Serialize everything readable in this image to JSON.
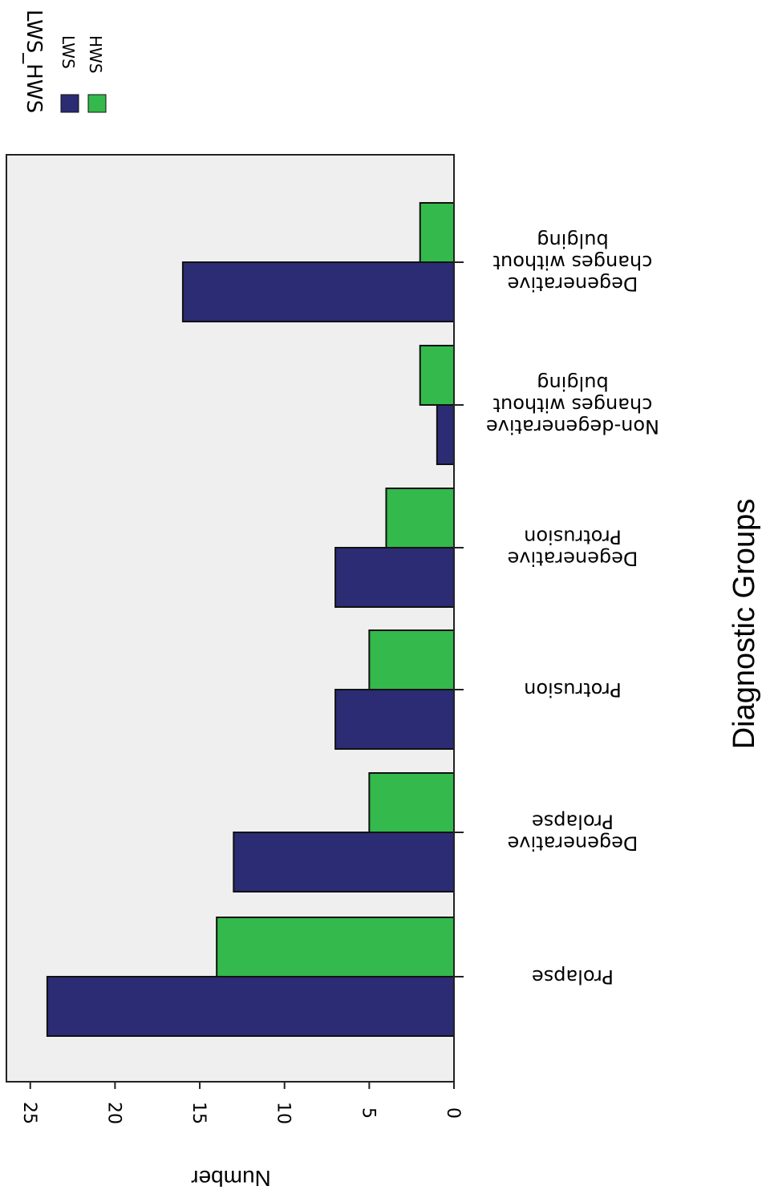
{
  "chart_data": {
    "type": "bar",
    "orientation": "horizontal",
    "rotated": "upside-down",
    "xlabel": "Diagnostic Groups",
    "ylabel": "Number",
    "categories": [
      "Prolapse",
      "Degenerative Prolapse",
      "Protrusion",
      "Degenerative Protrusion",
      "Non-degenerative changes without bulging",
      "Degenerative changes without bulging"
    ],
    "category_lines": [
      [
        "Prolapse"
      ],
      [
        "Degenerative",
        "Prolapse"
      ],
      [
        "Protrusion"
      ],
      [
        "Degenerative",
        "Protrusion"
      ],
      [
        "Non-degenerative",
        "changes without",
        "bulging"
      ],
      [
        "Degenerative",
        "changes without",
        "bulging"
      ]
    ],
    "series": [
      {
        "name": "LWS",
        "color": "#2b2c74",
        "values": [
          24,
          13,
          7,
          7,
          1,
          16
        ]
      },
      {
        "name": "HWS",
        "color": "#33b94c",
        "values": [
          14,
          5,
          5,
          4,
          2,
          2
        ]
      }
    ],
    "ylim": [
      0,
      25
    ],
    "yticks": [
      0,
      5,
      10,
      15,
      20,
      25
    ],
    "legend_title": "LWS_HWS",
    "legend_position": "top-left",
    "plot_background": "#efefef",
    "grid": false
  }
}
